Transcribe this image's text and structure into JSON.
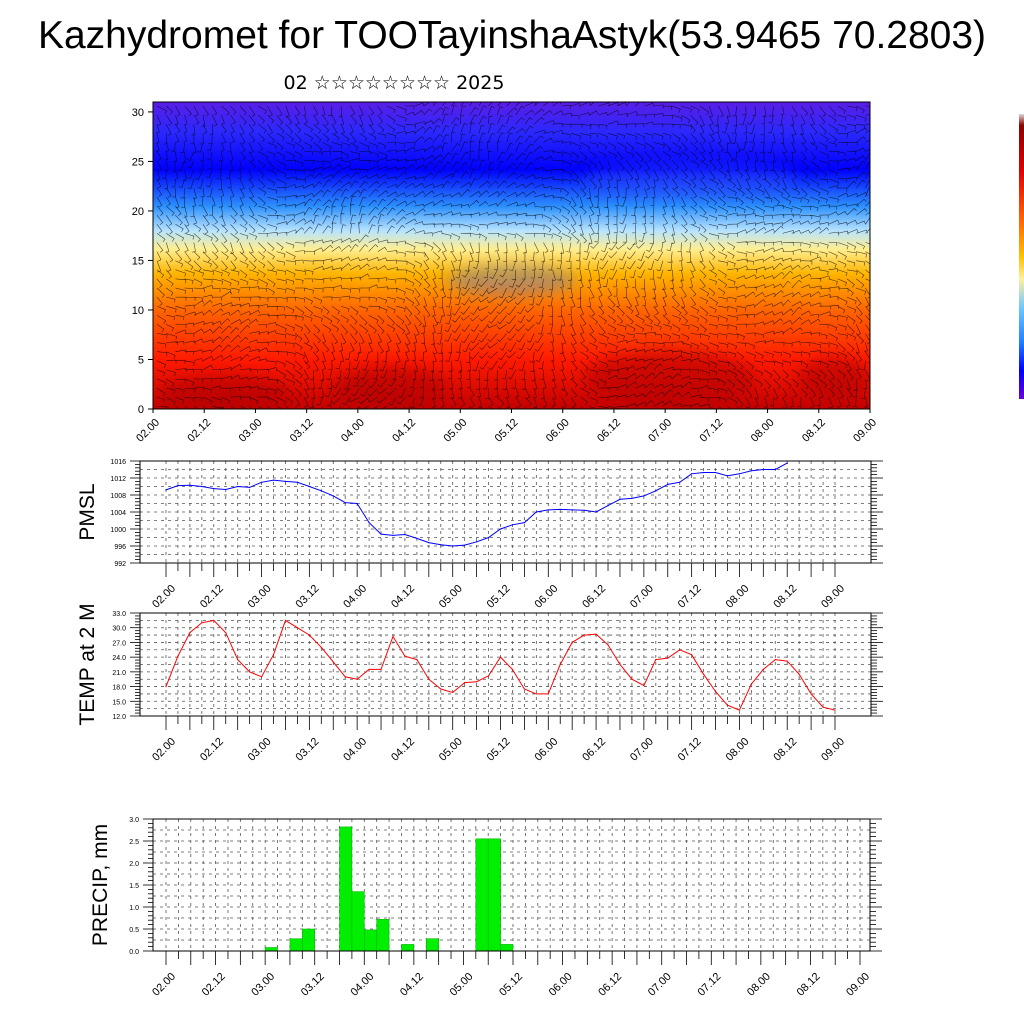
{
  "title": "Kazhydromet for TOOTayinshaAstyk(53.9465 70.2803)",
  "subtitle": {
    "day": "02",
    "month_glyphs": "☆☆☆☆☆☆☆☆",
    "year": "2025"
  },
  "colors": {
    "pmsl_line": "#0000ff",
    "temp_line": "#ff0000",
    "precip_bar": "#00ee00",
    "precip_edge": "#00aa00",
    "grid": "#555555"
  },
  "colorbar": {
    "orientation": "vertical",
    "placement": "right edge (partially cut off)",
    "colors": [
      "#d8d8d8",
      "#8b0000",
      "#cc0000",
      "#ff2200",
      "#ff6a00",
      "#ffb000",
      "#fff0a0",
      "#6ec8ff",
      "#2080ff",
      "#0000ff",
      "#6a00d8"
    ]
  },
  "chart_data": [
    {
      "type": "heatmap",
      "name": "cross-section",
      "x_ticks": [
        "02.00",
        "02.12",
        "03.00",
        "03.12",
        "04.00",
        "04.12",
        "05.00",
        "05.12",
        "06.00",
        "06.12",
        "07.00",
        "07.12",
        "08.00",
        "08.12",
        "09.00"
      ],
      "ylim": [
        0,
        31
      ],
      "y_ticks": [
        0,
        5,
        10,
        15,
        20,
        25,
        30
      ],
      "overlay": "wind barbs",
      "colormap": "red (low levels) to yellow (~15) to blue/purple (upper levels)"
    },
    {
      "type": "line",
      "name": "pmsl",
      "ylabel": "PMSL",
      "ylim": [
        992,
        1016
      ],
      "y_ticks": [
        "992",
        "996",
        "1000",
        "1004",
        "1008",
        "1012",
        "1016"
      ],
      "x_ticks": [
        "02.00",
        "02.12",
        "03.00",
        "03.12",
        "04.00",
        "04.12",
        "05.00",
        "05.12",
        "06.00",
        "06.12",
        "07.00",
        "07.12",
        "08.00",
        "08.12",
        "09.00"
      ],
      "x_step_hours": 3,
      "values": [
        1009.2,
        1010.2,
        1010.3,
        1010.0,
        1009.5,
        1009.3,
        1010.0,
        1009.8,
        1011.0,
        1011.5,
        1011.2,
        1011.0,
        1010.0,
        1009.0,
        1007.8,
        1006.2,
        1006.0,
        1001.5,
        998.8,
        998.5,
        998.7,
        997.8,
        996.8,
        996.3,
        996.0,
        996.2,
        997.0,
        998.0,
        1000.0,
        1001.0,
        1001.5,
        1004.0,
        1004.5,
        1004.6,
        1004.5,
        1004.4,
        1004.0,
        1005.5,
        1007.0,
        1007.2,
        1007.8,
        1009.0,
        1010.5,
        1011.0,
        1013.0,
        1013.3,
        1013.3,
        1012.5,
        1013.0,
        1013.7,
        1014.0,
        1014.0,
        1015.5
      ]
    },
    {
      "type": "line",
      "name": "temp",
      "ylabel": "TEMP at 2 M",
      "ylim": [
        12,
        33
      ],
      "y_ticks": [
        "12.0",
        "15.0",
        "18.0",
        "21.0",
        "24.0",
        "27.0",
        "30.0",
        "33.0"
      ],
      "x_ticks": [
        "02.00",
        "02.12",
        "03.00",
        "03.12",
        "04.00",
        "04.12",
        "05.00",
        "05.12",
        "06.00",
        "06.12",
        "07.00",
        "07.12",
        "08.00",
        "08.12",
        "09.00"
      ],
      "x_step_hours": 3,
      "values": [
        18.0,
        24.2,
        29.0,
        31.0,
        31.5,
        29.0,
        23.5,
        21.0,
        20.0,
        24.5,
        31.5,
        30.0,
        28.5,
        26.0,
        23.0,
        20.0,
        19.5,
        21.5,
        21.5,
        28.2,
        24.2,
        23.5,
        19.5,
        17.5,
        16.8,
        18.8,
        19.0,
        20.2,
        24.0,
        21.5,
        17.5,
        16.5,
        16.5,
        22.5,
        27.0,
        28.5,
        28.7,
        26.5,
        22.5,
        19.5,
        18.2,
        23.5,
        23.8,
        25.5,
        24.5,
        20.5,
        17.0,
        14.2,
        13.2,
        18.5,
        21.5,
        23.5,
        23.2,
        20.5,
        16.5,
        13.8,
        13.2
      ]
    },
    {
      "type": "bar",
      "name": "precip",
      "ylabel": "PRECIP, mm",
      "ylim": [
        0,
        3
      ],
      "y_ticks": [
        "0.0",
        "0.5",
        "1.0",
        "1.5",
        "2.0",
        "2.5",
        "3.0"
      ],
      "x_ticks": [
        "02.00",
        "02.12",
        "03.00",
        "03.12",
        "04.00",
        "04.12",
        "05.00",
        "05.12",
        "06.00",
        "06.12",
        "07.00",
        "07.12",
        "08.00",
        "08.12",
        "09.00"
      ],
      "x_step_hours": 3,
      "values": [
        0,
        0,
        0,
        0,
        0,
        0,
        0,
        0,
        0,
        0.08,
        0,
        0.28,
        0.5,
        0,
        0,
        2.82,
        1.35,
        0.48,
        0.72,
        0,
        0.15,
        0,
        0.28,
        0,
        0,
        0,
        2.55,
        2.55,
        0.15,
        0,
        0,
        0,
        0,
        0,
        0,
        0,
        0,
        0,
        0,
        0,
        0,
        0,
        0,
        0,
        0,
        0,
        0,
        0,
        0,
        0,
        0,
        0,
        0,
        0,
        0,
        0,
        0
      ]
    }
  ]
}
